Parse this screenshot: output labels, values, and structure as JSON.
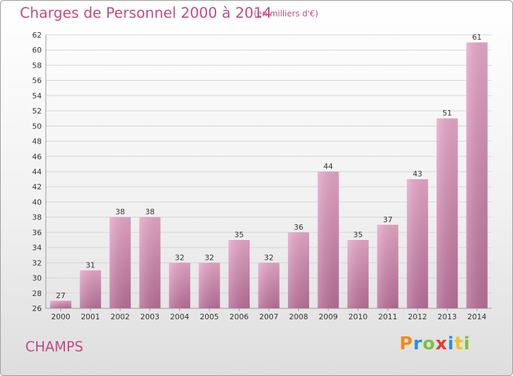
{
  "header": {
    "title": "Charges de Personnel 2000 à 2014",
    "unit": "(en milliers d'€)"
  },
  "footer": {
    "town": "CHAMPS",
    "logo_letters": [
      "P",
      "r",
      "o",
      "x",
      "i",
      "t",
      "i"
    ],
    "logo_colors": [
      "#f28a1c",
      "#2f8fd8",
      "#7cc143",
      "#e8392f",
      "#2f8fd8",
      "#f2c21c",
      "#7cc143"
    ]
  },
  "chart_data": {
    "type": "bar",
    "categories": [
      "2000",
      "2001",
      "2002",
      "2003",
      "2004",
      "2005",
      "2006",
      "2007",
      "2008",
      "2009",
      "2010",
      "2011",
      "2012",
      "2013",
      "2014"
    ],
    "values": [
      27,
      31,
      38,
      38,
      32,
      32,
      35,
      32,
      36,
      44,
      35,
      37,
      43,
      51,
      61
    ],
    "title": "Charges de Personnel 2000 à 2014",
    "ylim": [
      26,
      62
    ],
    "yticks": [
      26,
      28,
      30,
      32,
      34,
      36,
      38,
      40,
      42,
      44,
      46,
      48,
      50,
      52,
      54,
      56,
      58,
      60,
      62
    ],
    "grid": true,
    "bar_color": "#d98db1"
  }
}
